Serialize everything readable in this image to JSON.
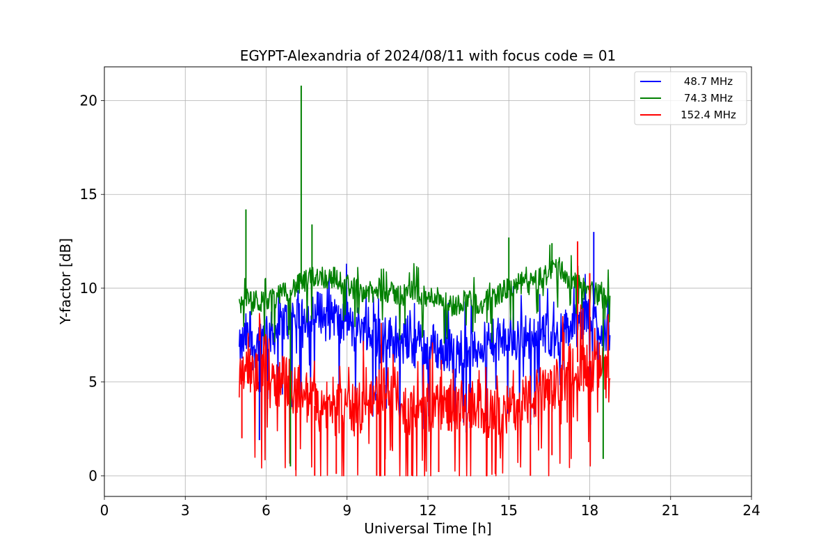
{
  "chart_data": {
    "type": "line",
    "title": "EGYPT-Alexandria of 2024/08/11 with focus code = 01",
    "xlabel": "Universal Time [h]",
    "ylabel": "Y-factor [dB]",
    "xlim": [
      0,
      24
    ],
    "ylim": [
      -1.1,
      21.8
    ],
    "xticks": [
      0,
      3,
      6,
      9,
      12,
      15,
      18,
      21,
      24
    ],
    "yticks": [
      0,
      5,
      10,
      15,
      20
    ],
    "grid": true,
    "legend_position": "top-right",
    "series": [
      {
        "name": "48.7 MHz",
        "color": "#0000ff",
        "x": [
          5.0,
          5.25,
          5.5,
          5.75,
          6.0,
          6.25,
          6.5,
          6.75,
          7.0,
          7.25,
          7.5,
          7.75,
          8.0,
          8.25,
          8.5,
          8.75,
          9.0,
          9.25,
          9.5,
          9.75,
          10.0,
          10.25,
          10.5,
          10.75,
          11.0,
          11.25,
          11.5,
          11.75,
          12.0,
          12.25,
          12.5,
          12.75,
          13.0,
          13.25,
          13.5,
          13.75,
          14.0,
          14.25,
          14.5,
          14.75,
          15.0,
          15.25,
          15.5,
          15.75,
          16.0,
          16.25,
          16.5,
          16.75,
          17.0,
          17.25,
          17.5,
          17.75,
          18.0,
          18.25,
          18.5,
          18.75
        ],
        "y": [
          6.5,
          7.5,
          6.8,
          7.2,
          7.8,
          7.5,
          8.0,
          8.3,
          8.5,
          8.8,
          8.6,
          8.4,
          8.9,
          8.2,
          8.7,
          7.9,
          8.4,
          7.6,
          8.1,
          7.3,
          7.8,
          7.0,
          7.5,
          7.2,
          6.8,
          7.4,
          6.9,
          7.3,
          6.5,
          7.1,
          6.4,
          6.9,
          6.2,
          6.8,
          7.0,
          6.5,
          7.2,
          6.7,
          7.4,
          7.0,
          7.5,
          7.1,
          7.7,
          7.2,
          7.8,
          7.4,
          7.6,
          7.3,
          7.7,
          7.9,
          8.0,
          8.3,
          8.6,
          8.2,
          7.8,
          7.5
        ]
      },
      {
        "name": "74.3 MHz",
        "color": "#008000",
        "x": [
          5.0,
          5.25,
          5.5,
          5.75,
          6.0,
          6.25,
          6.5,
          6.75,
          7.0,
          7.25,
          7.5,
          7.75,
          8.0,
          8.25,
          8.5,
          8.75,
          9.0,
          9.25,
          9.5,
          9.75,
          10.0,
          10.25,
          10.5,
          10.75,
          11.0,
          11.25,
          11.5,
          11.75,
          12.0,
          12.25,
          12.5,
          12.75,
          13.0,
          13.25,
          13.5,
          13.75,
          14.0,
          14.25,
          14.5,
          14.75,
          15.0,
          15.25,
          15.5,
          15.75,
          16.0,
          16.25,
          16.5,
          16.75,
          17.0,
          17.25,
          17.5,
          17.75,
          18.0,
          18.25,
          18.5,
          18.75
        ],
        "y": [
          9.0,
          9.6,
          9.1,
          9.3,
          9.2,
          9.5,
          9.6,
          9.8,
          10.0,
          10.2,
          10.4,
          10.6,
          10.7,
          10.5,
          10.6,
          10.3,
          10.2,
          10.0,
          9.9,
          9.8,
          9.7,
          9.9,
          9.8,
          9.7,
          9.6,
          9.8,
          9.9,
          9.6,
          9.4,
          9.6,
          9.5,
          9.2,
          9.0,
          9.3,
          9.5,
          9.2,
          9.0,
          9.4,
          9.6,
          9.8,
          10.0,
          10.1,
          10.3,
          10.2,
          10.4,
          10.6,
          10.8,
          11.3,
          10.9,
          10.4,
          10.2,
          10.0,
          9.9,
          9.7,
          9.5,
          9.6
        ]
      },
      {
        "name": "152.4 MHz",
        "color": "#ff0000",
        "x": [
          5.0,
          5.25,
          5.5,
          5.75,
          6.0,
          6.25,
          6.5,
          6.75,
          7.0,
          7.25,
          7.5,
          7.75,
          8.0,
          8.25,
          8.5,
          8.75,
          9.0,
          9.25,
          9.5,
          9.75,
          10.0,
          10.25,
          10.5,
          10.75,
          11.0,
          11.25,
          11.5,
          11.75,
          12.0,
          12.25,
          12.5,
          12.75,
          13.0,
          13.25,
          13.5,
          13.75,
          14.0,
          14.25,
          14.5,
          14.75,
          15.0,
          15.25,
          15.5,
          15.75,
          16.0,
          16.25,
          16.5,
          16.75,
          17.0,
          17.25,
          17.5,
          17.75,
          18.0,
          18.25,
          18.5,
          18.75
        ],
        "y": [
          5.5,
          6.0,
          5.2,
          5.8,
          6.2,
          5.5,
          4.8,
          5.2,
          4.5,
          4.8,
          4.2,
          3.8,
          3.5,
          3.8,
          3.2,
          3.6,
          3.4,
          3.5,
          3.6,
          3.9,
          4.2,
          4.6,
          5.0,
          4.5,
          3.8,
          3.5,
          3.8,
          3.4,
          3.6,
          3.9,
          3.5,
          3.8,
          3.3,
          3.7,
          3.5,
          3.9,
          3.6,
          3.3,
          3.2,
          3.5,
          3.4,
          3.8,
          4.2,
          4.0,
          4.3,
          4.5,
          4.4,
          4.8,
          5.2,
          5.8,
          6.2,
          5.5,
          5.8,
          6.0,
          5.5,
          5.2
        ]
      }
    ],
    "spikes": [
      {
        "series": "74.3 MHz",
        "x": 5.25,
        "y": 14.2
      },
      {
        "series": "74.3 MHz",
        "x": 7.3,
        "y": 20.8
      },
      {
        "series": "74.3 MHz",
        "x": 7.7,
        "y": 13.4
      },
      {
        "series": "74.3 MHz",
        "x": 15.0,
        "y": 12.7
      },
      {
        "series": "74.3 MHz",
        "x": 16.6,
        "y": 12.4
      },
      {
        "series": "48.7 MHz",
        "x": 18.15,
        "y": 13.0
      },
      {
        "series": "152.4 MHz",
        "x": 17.55,
        "y": 12.5
      },
      {
        "series": "152.4 MHz",
        "x": 18.0,
        "y": 10.8
      },
      {
        "series": "74.3 MHz",
        "x": 18.5,
        "y": 0.9
      },
      {
        "series": "74.3 MHz",
        "x": 6.9,
        "y": 0.5
      },
      {
        "series": "48.7 MHz",
        "x": 5.75,
        "y": 1.9
      },
      {
        "series": "152.4 MHz",
        "x": 5.1,
        "y": 2.0
      },
      {
        "series": "152.4 MHz",
        "x": 7.1,
        "y": 0.3
      },
      {
        "series": "152.4 MHz",
        "x": 7.8,
        "y": 0.0
      },
      {
        "series": "152.4 MHz",
        "x": 8.6,
        "y": 0.1
      },
      {
        "series": "152.4 MHz",
        "x": 10.1,
        "y": 0.0
      },
      {
        "series": "152.4 MHz",
        "x": 10.4,
        "y": 0.0
      },
      {
        "series": "152.4 MHz",
        "x": 11.4,
        "y": 0.0
      },
      {
        "series": "152.4 MHz",
        "x": 12.4,
        "y": 0.2
      },
      {
        "series": "152.4 MHz",
        "x": 14.5,
        "y": 0.1
      },
      {
        "series": "152.4 MHz",
        "x": 15.8,
        "y": 0.0
      },
      {
        "series": "152.4 MHz",
        "x": 16.6,
        "y": 1.1
      }
    ]
  }
}
